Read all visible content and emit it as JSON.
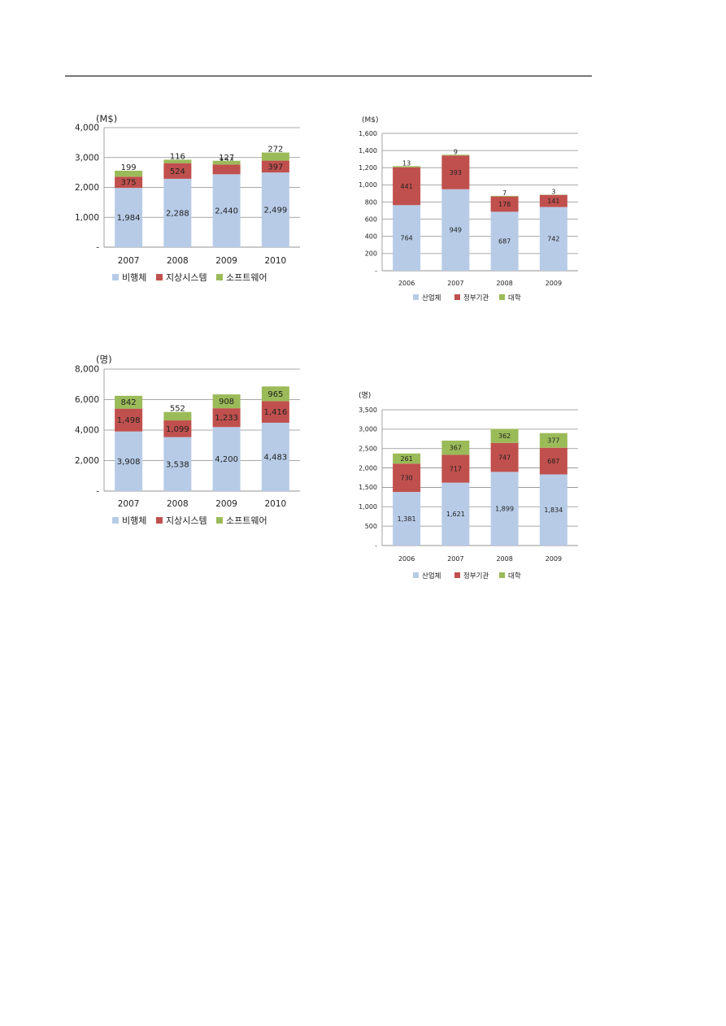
{
  "colors": {
    "s1": "#b7cbe7",
    "s2": "#c0504d",
    "s3": "#9bbb59",
    "grid": "#8c8c8c",
    "axis": "#8c8c8c"
  },
  "chart_data": [
    {
      "type": "bar",
      "stacked": true,
      "unit_label": "(M$)",
      "categories": [
        "2007",
        "2008",
        "2009",
        "2010"
      ],
      "series": [
        {
          "name": "비행체",
          "values": [
            1984,
            2288,
            2440,
            2499
          ],
          "labels": [
            "1,984",
            "2,288",
            "2,440",
            "2,499"
          ]
        },
        {
          "name": "지상시스템",
          "values": [
            375,
            524,
            324,
            397
          ],
          "labels": [
            "375",
            "524",
            "324",
            "397"
          ]
        },
        {
          "name": "소프트웨어",
          "values": [
            199,
            116,
            127,
            272
          ],
          "labels": [
            "199",
            "116",
            "127",
            "272"
          ]
        }
      ],
      "ylim": [
        0,
        4000
      ],
      "yticks": [
        0,
        1000,
        2000,
        3000,
        4000
      ],
      "ytick_labels": [
        "-",
        "1,000",
        "2,000",
        "3,000",
        "4,000"
      ],
      "grid": true,
      "legend": "bottom"
    },
    {
      "type": "bar",
      "stacked": true,
      "unit_label": "(M$)",
      "categories": [
        "2006",
        "2007",
        "2008",
        "2009"
      ],
      "series": [
        {
          "name": "산업체",
          "values": [
            764,
            949,
            687,
            742
          ],
          "labels": [
            "764",
            "949",
            "687",
            "742"
          ]
        },
        {
          "name": "정부기관",
          "values": [
            441,
            393,
            178,
            141
          ],
          "labels": [
            "441",
            "393",
            "178",
            "141"
          ]
        },
        {
          "name": "대학",
          "values": [
            13,
            9,
            7,
            3
          ],
          "labels": [
            "13",
            "9",
            "7",
            "3"
          ]
        }
      ],
      "ylim": [
        0,
        1600
      ],
      "yticks": [
        0,
        200,
        400,
        600,
        800,
        1000,
        1200,
        1400,
        1600
      ],
      "ytick_labels": [
        "-",
        "200",
        "400",
        "600",
        "800",
        "1,000",
        "1,200",
        "1,400",
        "1,600"
      ],
      "grid": true,
      "legend": "bottom"
    },
    {
      "type": "bar",
      "stacked": true,
      "unit_label": "(명)",
      "categories": [
        "2007",
        "2008",
        "2009",
        "2010"
      ],
      "series": [
        {
          "name": "비행체",
          "values": [
            3908,
            3538,
            4200,
            4483
          ],
          "labels": [
            "3,908",
            "3,538",
            "4,200",
            "4,483"
          ]
        },
        {
          "name": "지상시스템",
          "values": [
            1498,
            1099,
            1233,
            1416
          ],
          "labels": [
            "1,498",
            "1,099",
            "1,233",
            "1,416"
          ]
        },
        {
          "name": "소프트웨어",
          "values": [
            842,
            552,
            908,
            965
          ],
          "labels": [
            "842",
            "552",
            "908",
            "965"
          ]
        }
      ],
      "ylim": [
        0,
        8000
      ],
      "yticks": [
        0,
        2000,
        4000,
        6000,
        8000
      ],
      "ytick_labels": [
        "-",
        "2,000",
        "4,000",
        "6,000",
        "8,000"
      ],
      "grid": true,
      "legend": "bottom"
    },
    {
      "type": "bar",
      "stacked": true,
      "unit_label": "(명)",
      "categories": [
        "2006",
        "2007",
        "2008",
        "2009"
      ],
      "series": [
        {
          "name": "산업체",
          "values": [
            1381,
            1621,
            1899,
            1834
          ],
          "labels": [
            "1,381",
            "1,621",
            "1,899",
            "1,834"
          ]
        },
        {
          "name": "정부기관",
          "values": [
            730,
            717,
            747,
            687
          ],
          "labels": [
            "730",
            "717",
            "747",
            "687"
          ]
        },
        {
          "name": "대학",
          "values": [
            261,
            367,
            362,
            377
          ],
          "labels": [
            "261",
            "367",
            "362",
            "377"
          ]
        }
      ],
      "ylim": [
        0,
        3500
      ],
      "yticks": [
        0,
        500,
        1000,
        1500,
        2000,
        2500,
        3000,
        3500
      ],
      "ytick_labels": [
        "-",
        "500",
        "1,000",
        "1,500",
        "2,000",
        "2,500",
        "3,000",
        "3,500"
      ],
      "grid": true,
      "legend": "bottom"
    }
  ]
}
